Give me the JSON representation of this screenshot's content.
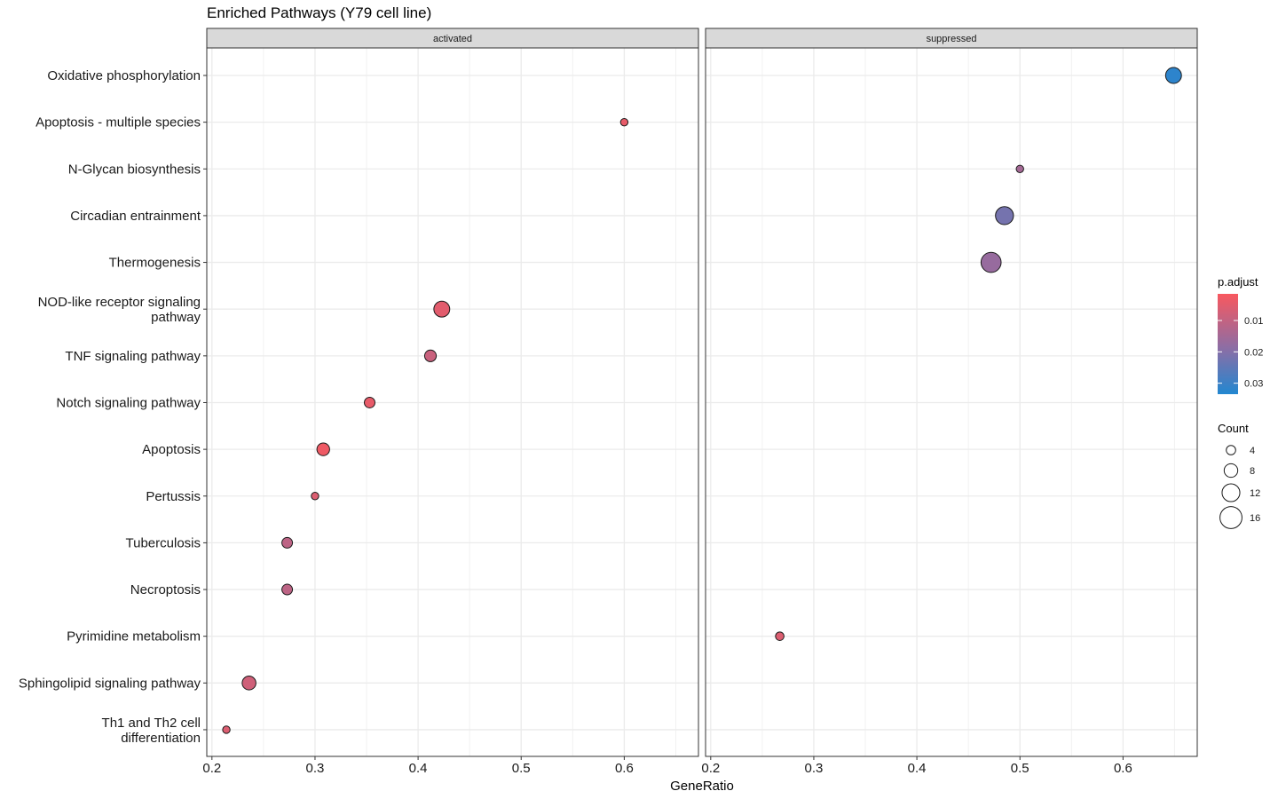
{
  "chart_data": {
    "type": "scatter",
    "title": "Enriched Pathways (Y79 cell line)",
    "xlabel": "GeneRatio",
    "ylabel": "",
    "xlim": [
      0.195,
      0.672
    ],
    "xticks": [
      0.2,
      0.3,
      0.4,
      0.5,
      0.6
    ],
    "xtick_labels": [
      "0.2",
      "0.3",
      "0.4",
      "0.5",
      "0.6"
    ],
    "grid": true,
    "facets": [
      "activated",
      "suppressed"
    ],
    "categories": [
      "Oxidative phosphorylation",
      "Apoptosis - multiple species",
      "N-Glycan biosynthesis",
      "Circadian entrainment",
      "Thermogenesis",
      "NOD-like receptor signaling\npathway",
      "TNF signaling pathway",
      "Notch signaling pathway",
      "Apoptosis",
      "Pertussis",
      "Tuberculosis",
      "Necroptosis",
      "Pyrimidine metabolism",
      "Sphingolipid signaling pathway",
      "Th1 and Th2 cell\ndifferentiation"
    ],
    "points": [
      {
        "facet": "activated",
        "category": "Apoptosis - multiple species",
        "x": 0.6,
        "count": 3,
        "p_adjust": 0.004
      },
      {
        "facet": "activated",
        "category": "NOD-like receptor signaling\npathway",
        "x": 0.423,
        "count": 11,
        "p_adjust": 0.005
      },
      {
        "facet": "activated",
        "category": "TNF signaling pathway",
        "x": 0.412,
        "count": 7,
        "p_adjust": 0.009
      },
      {
        "facet": "activated",
        "category": "Notch signaling pathway",
        "x": 0.353,
        "count": 6,
        "p_adjust": 0.004
      },
      {
        "facet": "activated",
        "category": "Apoptosis",
        "x": 0.308,
        "count": 8,
        "p_adjust": 0.003
      },
      {
        "facet": "activated",
        "category": "Pertussis",
        "x": 0.3,
        "count": 3,
        "p_adjust": 0.006
      },
      {
        "facet": "activated",
        "category": "Tuberculosis",
        "x": 0.273,
        "count": 6,
        "p_adjust": 0.011
      },
      {
        "facet": "activated",
        "category": "Necroptosis",
        "x": 0.273,
        "count": 6,
        "p_adjust": 0.011
      },
      {
        "facet": "activated",
        "category": "Sphingolipid signaling pathway",
        "x": 0.236,
        "count": 9,
        "p_adjust": 0.008
      },
      {
        "facet": "activated",
        "category": "Th1 and Th2 cell\ndifferentiation",
        "x": 0.214,
        "count": 3,
        "p_adjust": 0.006
      },
      {
        "facet": "suppressed",
        "category": "Oxidative phosphorylation",
        "x": 0.649,
        "count": 11,
        "p_adjust": 0.032
      },
      {
        "facet": "suppressed",
        "category": "N-Glycan biosynthesis",
        "x": 0.5,
        "count": 3,
        "p_adjust": 0.015
      },
      {
        "facet": "suppressed",
        "category": "Circadian entrainment",
        "x": 0.485,
        "count": 13,
        "p_adjust": 0.022
      },
      {
        "facet": "suppressed",
        "category": "Thermogenesis",
        "x": 0.472,
        "count": 15,
        "p_adjust": 0.017
      },
      {
        "facet": "suppressed",
        "category": "Pyrimidine metabolism",
        "x": 0.267,
        "count": 4,
        "p_adjust": 0.006
      }
    ],
    "color_scale": {
      "title": "p.adjust",
      "min": 0.0015,
      "max": 0.0335,
      "low_color": "#f8585f",
      "mid_color": "#8a6ea6",
      "high_color": "#2287d0",
      "ticks": [
        0.01,
        0.02,
        0.03
      ],
      "tick_labels": [
        "0.01",
        "0.02",
        "0.03"
      ]
    },
    "size_scale": {
      "title": "Count",
      "values": [
        4,
        8,
        12,
        16
      ],
      "labels": [
        "4",
        "8",
        "12",
        "16"
      ]
    },
    "legend_position": "right"
  }
}
